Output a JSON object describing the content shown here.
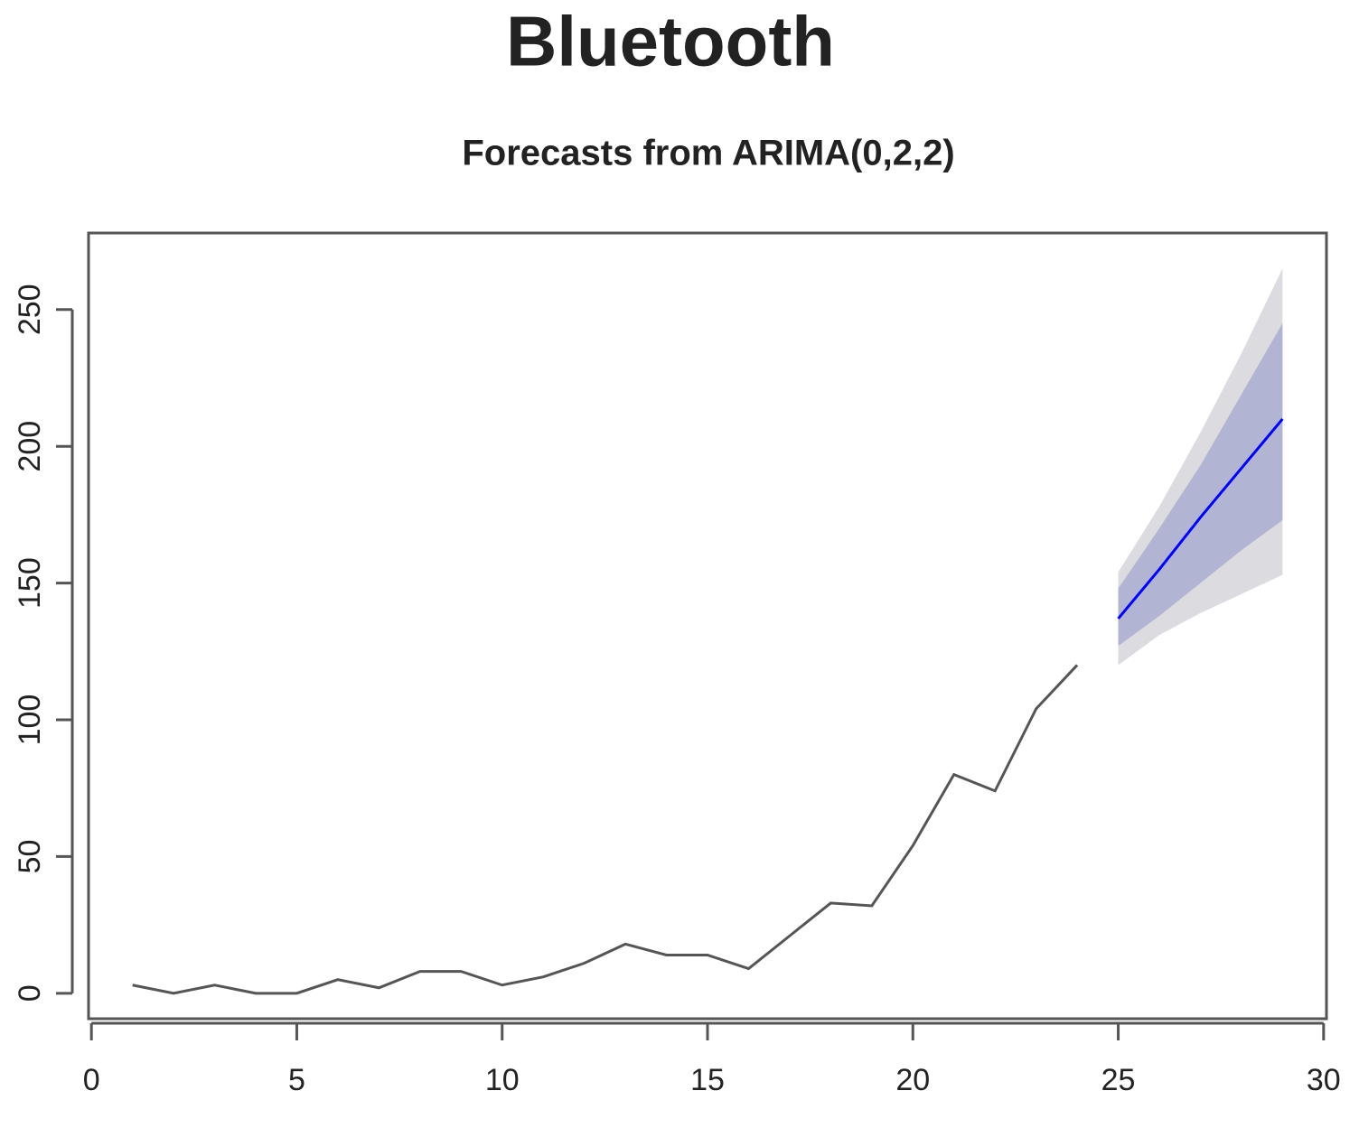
{
  "chart_data": {
    "type": "line",
    "title": "Bluetooth",
    "subtitle": "Forecasts from ARIMA(0,2,2)",
    "xlim": [
      -0.07,
      30.07
    ],
    "xticks": [
      0,
      5,
      10,
      15,
      20,
      25,
      30
    ],
    "ylim": [
      -9.3,
      278
    ],
    "yticks": [
      0,
      50,
      100,
      150,
      200,
      250
    ],
    "series": [
      {
        "color": "#555555",
        "x": [
          1,
          2,
          3,
          4,
          5,
          6,
          7,
          8,
          9,
          10,
          11,
          12,
          13,
          14,
          15,
          16,
          17,
          18,
          19,
          20,
          21,
          22,
          23,
          24
        ],
        "values": [
          3,
          0,
          3,
          0,
          0,
          5,
          2,
          8,
          8,
          3,
          6,
          11,
          18,
          14,
          14,
          9,
          21,
          33,
          32,
          54,
          80,
          74,
          104,
          120
        ]
      },
      {
        "color": "#0000ff",
        "x": [
          25,
          26,
          27,
          28,
          29
        ],
        "values": [
          137,
          155,
          174,
          192,
          210
        ]
      }
    ],
    "bands": [
      {
        "color": "#dbdbe0",
        "x": [
          25,
          26,
          27,
          28,
          29
        ],
        "lower": [
          120,
          131,
          139,
          146,
          153
        ],
        "upper": [
          154,
          178,
          205,
          234,
          265
        ]
      },
      {
        "color": "#b1b5d3",
        "x": [
          25,
          26,
          27,
          28,
          29
        ],
        "lower": [
          127,
          138,
          150,
          162,
          173
        ],
        "upper": [
          148,
          170,
          193,
          219,
          245
        ]
      }
    ]
  }
}
